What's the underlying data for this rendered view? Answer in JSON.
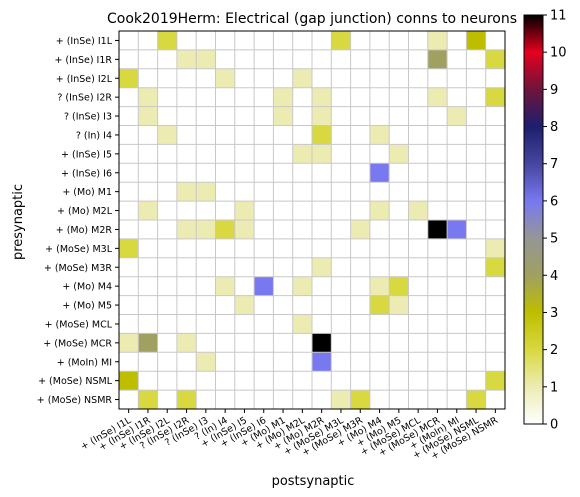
{
  "chart_data": {
    "type": "heatmap",
    "title": "Cook2019Herm: Electrical (gap junction) conns to neurons",
    "xlabel": "postsynaptic",
    "ylabel": "presynaptic",
    "rows": [
      "+ (InSe) I1L",
      "+ (InSe) I1R",
      "+ (InSe) I2L",
      "? (InSe) I2R",
      "? (InSe) I3",
      "? (In) I4",
      "+ (InSe) I5",
      "+ (InSe) I6",
      "+ (Mo) M1",
      "+ (Mo) M2L",
      "+ (Mo) M2R",
      "+ (MoSe) M3L",
      "+ (MoSe) M3R",
      "+ (Mo) M4",
      "+ (Mo) M5",
      "+ (MoSe) MCL",
      "+ (MoSe) MCR",
      "+ (MoIn) MI",
      "+ (MoSe) NSML",
      "+ (MoSe) NSMR"
    ],
    "columns": [
      "+ (InSe) I1L",
      "+ (InSe) I1R",
      "+ (InSe) I2L",
      "? (InSe) I2R",
      "? (InSe) I3",
      "? (In) I4",
      "+ (InSe) I5",
      "+ (InSe) I6",
      "+ (Mo) M1",
      "+ (Mo) M2L",
      "+ (Mo) M2R",
      "+ (MoSe) M3L",
      "+ (MoSe) M3R",
      "+ (Mo) M4",
      "+ (Mo) M5",
      "+ (MoSe) MCL",
      "+ (MoSe) MCR",
      "+ (MoIn) MI",
      "+ (MoSe) NSML",
      "+ (MoSe) NSMR"
    ],
    "values": [
      [
        0,
        0,
        2,
        0,
        0,
        0,
        0,
        0,
        0,
        0,
        0,
        2,
        0,
        0,
        0,
        0,
        1,
        0,
        3,
        0
      ],
      [
        0,
        0,
        0,
        1,
        1,
        0,
        0,
        0,
        0,
        0,
        0,
        0,
        0,
        0,
        0,
        0,
        4,
        0,
        0,
        2
      ],
      [
        2,
        0,
        0,
        0,
        0,
        1,
        0,
        0,
        0,
        1,
        0,
        0,
        0,
        0,
        0,
        0,
        0,
        0,
        0,
        0
      ],
      [
        0,
        1,
        0,
        0,
        0,
        0,
        0,
        0,
        1,
        0,
        1,
        0,
        0,
        0,
        0,
        0,
        1,
        0,
        0,
        2
      ],
      [
        0,
        1,
        0,
        0,
        0,
        0,
        0,
        0,
        1,
        0,
        1,
        0,
        0,
        0,
        0,
        0,
        0,
        1,
        0,
        0
      ],
      [
        0,
        0,
        1,
        0,
        0,
        0,
        0,
        0,
        0,
        0,
        2,
        0,
        0,
        1,
        0,
        0,
        0,
        0,
        0,
        0
      ],
      [
        0,
        0,
        0,
        0,
        0,
        0,
        0,
        0,
        0,
        1,
        1,
        0,
        0,
        0,
        1,
        0,
        0,
        0,
        0,
        0
      ],
      [
        0,
        0,
        0,
        0,
        0,
        0,
        0,
        0,
        0,
        0,
        0,
        0,
        0,
        6,
        0,
        0,
        0,
        0,
        0,
        0
      ],
      [
        0,
        0,
        0,
        1,
        1,
        0,
        0,
        0,
        0,
        0,
        0,
        0,
        0,
        0,
        0,
        0,
        0,
        0,
        0,
        0
      ],
      [
        0,
        1,
        0,
        0,
        0,
        0,
        1,
        0,
        0,
        0,
        0,
        0,
        0,
        1,
        0,
        1,
        0,
        0,
        0,
        0
      ],
      [
        0,
        0,
        0,
        1,
        1,
        2,
        1,
        0,
        0,
        0,
        0,
        0,
        1,
        0,
        0,
        0,
        11,
        6,
        0,
        0
      ],
      [
        2,
        0,
        0,
        0,
        0,
        0,
        0,
        0,
        0,
        0,
        0,
        0,
        0,
        0,
        0,
        0,
        0,
        0,
        0,
        1
      ],
      [
        0,
        0,
        0,
        0,
        0,
        0,
        0,
        0,
        0,
        0,
        1,
        0,
        0,
        0,
        0,
        0,
        0,
        0,
        0,
        2
      ],
      [
        0,
        0,
        0,
        0,
        0,
        1,
        0,
        6,
        0,
        1,
        0,
        0,
        0,
        1,
        2,
        0,
        0,
        0,
        0,
        0
      ],
      [
        0,
        0,
        0,
        0,
        0,
        0,
        1,
        0,
        0,
        0,
        0,
        0,
        0,
        2,
        1,
        0,
        0,
        0,
        0,
        0
      ],
      [
        0,
        0,
        0,
        0,
        0,
        0,
        0,
        0,
        0,
        1,
        0,
        0,
        0,
        0,
        0,
        0,
        0,
        0,
        0,
        0
      ],
      [
        1,
        4,
        0,
        1,
        0,
        0,
        0,
        0,
        0,
        0,
        11,
        0,
        0,
        0,
        0,
        0,
        0,
        0,
        0,
        0
      ],
      [
        0,
        0,
        0,
        0,
        1,
        0,
        0,
        0,
        0,
        0,
        6,
        0,
        0,
        0,
        0,
        0,
        0,
        0,
        0,
        0
      ],
      [
        3,
        0,
        0,
        0,
        0,
        0,
        0,
        0,
        0,
        0,
        0,
        0,
        0,
        0,
        0,
        0,
        0,
        0,
        0,
        2
      ],
      [
        0,
        2,
        0,
        2,
        0,
        0,
        0,
        0,
        0,
        0,
        0,
        1,
        2,
        0,
        0,
        0,
        0,
        0,
        2,
        0
      ]
    ],
    "vmin": 0,
    "vmax": 11,
    "colorbar_ticks": [
      0,
      1,
      2,
      3,
      4,
      5,
      6,
      7,
      8,
      9,
      10,
      11
    ],
    "colormap": "gist_stern-like (white, yellow-olive, gray, blue, dark navy, red, black)",
    "grid": true
  }
}
